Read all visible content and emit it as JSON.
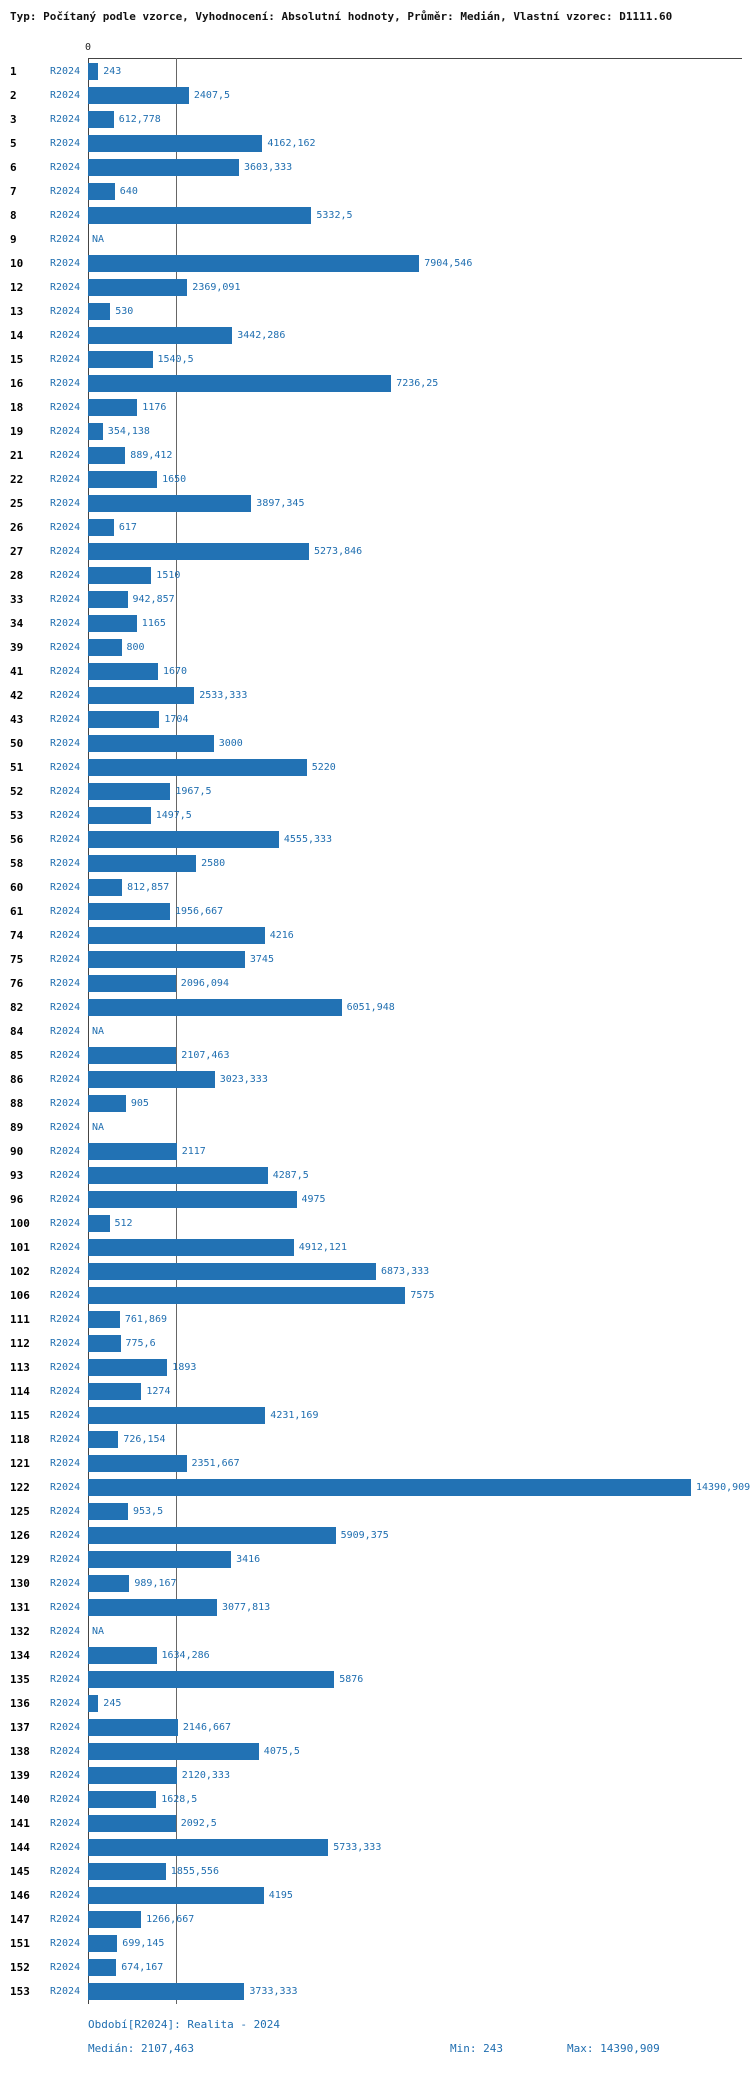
{
  "title": "Typ: Počítaný podle vzorce, Vyhodnocení: Absolutní hodnoty, Průměr: Medián, Vlastní vzorec: D1111.60",
  "axis": {
    "zero_label": "0"
  },
  "na_label": "NA",
  "colors": {
    "bar": "#2272b4",
    "value_text": "#1f6eb0",
    "row_number_text": "#000000",
    "axis_line": "#444444",
    "median_line": "#666666",
    "background": "#ffffff"
  },
  "footer": {
    "period": "Období[R2024]: Realita - 2024",
    "median": "Medián: 2107,463",
    "min": "Min: 243",
    "max": "Max: 14390,909"
  },
  "chart_data": {
    "type": "bar",
    "orientation": "horizontal",
    "title": "Typ: Počítaný podle vzorce, Vyhodnocení: Absolutní hodnoty, Průměr: Medián, Vlastní vzorec: D1111.60",
    "series_name": "R2024",
    "xlim": [
      0,
      14390.909
    ],
    "median": 2107.463,
    "min": 243,
    "max": 14390.909,
    "grid": "zero-axis and median vertical lines",
    "legend_position": "none",
    "rows": [
      {
        "id": "1",
        "value": 243,
        "display": "243"
      },
      {
        "id": "2",
        "value": 2407.5,
        "display": "2407,5"
      },
      {
        "id": "3",
        "value": 612.778,
        "display": "612,778"
      },
      {
        "id": "5",
        "value": 4162.162,
        "display": "4162,162"
      },
      {
        "id": "6",
        "value": 3603.333,
        "display": "3603,333"
      },
      {
        "id": "7",
        "value": 640,
        "display": "640"
      },
      {
        "id": "8",
        "value": 5332.5,
        "display": "5332,5"
      },
      {
        "id": "9",
        "value": null,
        "display": "NA"
      },
      {
        "id": "10",
        "value": 7904.546,
        "display": "7904,546"
      },
      {
        "id": "12",
        "value": 2369.091,
        "display": "2369,091"
      },
      {
        "id": "13",
        "value": 530,
        "display": "530"
      },
      {
        "id": "14",
        "value": 3442.286,
        "display": "3442,286"
      },
      {
        "id": "15",
        "value": 1540.5,
        "display": "1540,5"
      },
      {
        "id": "16",
        "value": 7236.25,
        "display": "7236,25"
      },
      {
        "id": "18",
        "value": 1176,
        "display": "1176"
      },
      {
        "id": "19",
        "value": 354.138,
        "display": "354,138"
      },
      {
        "id": "21",
        "value": 889.412,
        "display": "889,412"
      },
      {
        "id": "22",
        "value": 1650,
        "display": "1650"
      },
      {
        "id": "25",
        "value": 3897.345,
        "display": "3897,345"
      },
      {
        "id": "26",
        "value": 617,
        "display": "617"
      },
      {
        "id": "27",
        "value": 5273.846,
        "display": "5273,846"
      },
      {
        "id": "28",
        "value": 1510,
        "display": "1510"
      },
      {
        "id": "33",
        "value": 942.857,
        "display": "942,857"
      },
      {
        "id": "34",
        "value": 1165,
        "display": "1165"
      },
      {
        "id": "39",
        "value": 800,
        "display": "800"
      },
      {
        "id": "41",
        "value": 1670,
        "display": "1670"
      },
      {
        "id": "42",
        "value": 2533.333,
        "display": "2533,333"
      },
      {
        "id": "43",
        "value": 1704,
        "display": "1704"
      },
      {
        "id": "50",
        "value": 3000,
        "display": "3000"
      },
      {
        "id": "51",
        "value": 5220,
        "display": "5220"
      },
      {
        "id": "52",
        "value": 1967.5,
        "display": "1967,5"
      },
      {
        "id": "53",
        "value": 1497.5,
        "display": "1497,5"
      },
      {
        "id": "56",
        "value": 4555.333,
        "display": "4555,333"
      },
      {
        "id": "58",
        "value": 2580,
        "display": "2580"
      },
      {
        "id": "60",
        "value": 812.857,
        "display": "812,857"
      },
      {
        "id": "61",
        "value": 1956.667,
        "display": "1956,667"
      },
      {
        "id": "74",
        "value": 4216,
        "display": "4216"
      },
      {
        "id": "75",
        "value": 3745,
        "display": "3745"
      },
      {
        "id": "76",
        "value": 2096.094,
        "display": "2096,094"
      },
      {
        "id": "82",
        "value": 6051.948,
        "display": "6051,948"
      },
      {
        "id": "84",
        "value": null,
        "display": "NA"
      },
      {
        "id": "85",
        "value": 2107.463,
        "display": "2107,463"
      },
      {
        "id": "86",
        "value": 3023.333,
        "display": "3023,333"
      },
      {
        "id": "88",
        "value": 905,
        "display": "905"
      },
      {
        "id": "89",
        "value": null,
        "display": "NA"
      },
      {
        "id": "90",
        "value": 2117,
        "display": "2117"
      },
      {
        "id": "93",
        "value": 4287.5,
        "display": "4287,5"
      },
      {
        "id": "96",
        "value": 4975,
        "display": "4975"
      },
      {
        "id": "100",
        "value": 512,
        "display": "512"
      },
      {
        "id": "101",
        "value": 4912.121,
        "display": "4912,121"
      },
      {
        "id": "102",
        "value": 6873.333,
        "display": "6873,333"
      },
      {
        "id": "106",
        "value": 7575,
        "display": "7575"
      },
      {
        "id": "111",
        "value": 761.869,
        "display": "761,869"
      },
      {
        "id": "112",
        "value": 775.6,
        "display": "775,6"
      },
      {
        "id": "113",
        "value": 1893,
        "display": "1893"
      },
      {
        "id": "114",
        "value": 1274,
        "display": "1274"
      },
      {
        "id": "115",
        "value": 4231.169,
        "display": "4231,169"
      },
      {
        "id": "118",
        "value": 726.154,
        "display": "726,154"
      },
      {
        "id": "121",
        "value": 2351.667,
        "display": "2351,667"
      },
      {
        "id": "122",
        "value": 14390.909,
        "display": "14390,909"
      },
      {
        "id": "125",
        "value": 953.5,
        "display": "953,5"
      },
      {
        "id": "126",
        "value": 5909.375,
        "display": "5909,375"
      },
      {
        "id": "129",
        "value": 3416,
        "display": "3416"
      },
      {
        "id": "130",
        "value": 989.167,
        "display": "989,167"
      },
      {
        "id": "131",
        "value": 3077.813,
        "display": "3077,813"
      },
      {
        "id": "132",
        "value": null,
        "display": "NA"
      },
      {
        "id": "134",
        "value": 1634.286,
        "display": "1634,286"
      },
      {
        "id": "135",
        "value": 5876,
        "display": "5876"
      },
      {
        "id": "136",
        "value": 245,
        "display": "245"
      },
      {
        "id": "137",
        "value": 2146.667,
        "display": "2146,667"
      },
      {
        "id": "138",
        "value": 4075.5,
        "display": "4075,5"
      },
      {
        "id": "139",
        "value": 2120.333,
        "display": "2120,333"
      },
      {
        "id": "140",
        "value": 1628.5,
        "display": "1628,5"
      },
      {
        "id": "141",
        "value": 2092.5,
        "display": "2092,5"
      },
      {
        "id": "144",
        "value": 5733.333,
        "display": "5733,333"
      },
      {
        "id": "145",
        "value": 1855.556,
        "display": "1855,556"
      },
      {
        "id": "146",
        "value": 4195,
        "display": "4195"
      },
      {
        "id": "147",
        "value": 1266.667,
        "display": "1266,667"
      },
      {
        "id": "151",
        "value": 699.145,
        "display": "699,145"
      },
      {
        "id": "152",
        "value": 674.167,
        "display": "674,167"
      },
      {
        "id": "153",
        "value": 3733.333,
        "display": "3733,333"
      }
    ]
  }
}
